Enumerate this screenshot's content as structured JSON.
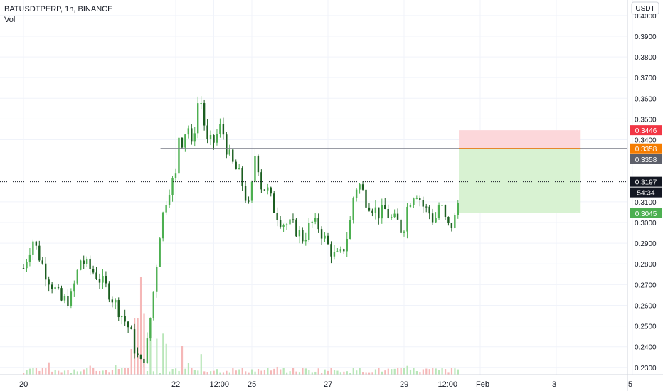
{
  "header": {
    "symbol_line": "BATUSDTPERP, 1h, BINANCE",
    "volume_label": "Vol"
  },
  "chart_data": {
    "type": "candlestick",
    "currency_label": "USDT",
    "ylim": [
      0.2265,
      0.4075
    ],
    "y_ticks": [
      {
        "value": 0.4,
        "label": "0.4000"
      },
      {
        "value": 0.39,
        "label": "0.3900"
      },
      {
        "value": 0.38,
        "label": "0.3800"
      },
      {
        "value": 0.37,
        "label": "0.3700"
      },
      {
        "value": 0.36,
        "label": "0.3600"
      },
      {
        "value": 0.35,
        "label": "0.3500"
      },
      {
        "value": 0.34,
        "label": "0.3400"
      },
      {
        "value": 0.31,
        "label": "0.3100"
      },
      {
        "value": 0.3,
        "label": "0.3000"
      },
      {
        "value": 0.29,
        "label": "0.2900"
      },
      {
        "value": 0.28,
        "label": "0.2800"
      },
      {
        "value": 0.27,
        "label": "0.2700"
      },
      {
        "value": 0.26,
        "label": "0.2600"
      },
      {
        "value": 0.25,
        "label": "0.2500"
      },
      {
        "value": 0.24,
        "label": "0.2400"
      },
      {
        "value": 0.23,
        "label": "0.2300"
      }
    ],
    "x_ticks": [
      {
        "day": 0,
        "label": "20"
      },
      {
        "day": 2,
        "label": "22"
      },
      {
        "day": 2.5,
        "label": "12:00"
      },
      {
        "day": 3,
        "label": "25"
      },
      {
        "day": 4,
        "label": "27"
      },
      {
        "day": 5,
        "label": "29"
      },
      {
        "day": 5.5,
        "label": "12:00"
      },
      {
        "day": 6,
        "label": "Feb"
      },
      {
        "day": 7,
        "label": "3"
      },
      {
        "day": 8,
        "label": "5"
      }
    ],
    "price_path": [
      [
        0.0,
        0.278
      ],
      [
        0.12,
        0.292
      ],
      [
        0.3,
        0.275
      ],
      [
        0.5,
        0.262
      ],
      [
        0.62,
        0.263
      ],
      [
        0.75,
        0.282
      ],
      [
        0.95,
        0.275
      ],
      [
        1.1,
        0.268
      ],
      [
        1.25,
        0.258
      ],
      [
        1.4,
        0.248
      ],
      [
        1.48,
        0.236
      ],
      [
        1.55,
        0.231
      ],
      [
        1.62,
        0.24
      ],
      [
        1.72,
        0.27
      ],
      [
        1.8,
        0.298
      ],
      [
        1.9,
        0.316
      ],
      [
        2.0,
        0.322
      ],
      [
        2.05,
        0.346
      ],
      [
        2.1,
        0.336
      ],
      [
        2.15,
        0.352
      ],
      [
        2.2,
        0.334
      ],
      [
        2.25,
        0.346
      ],
      [
        2.3,
        0.36
      ],
      [
        2.35,
        0.357
      ],
      [
        2.4,
        0.338
      ],
      [
        2.5,
        0.339
      ],
      [
        2.6,
        0.347
      ],
      [
        2.68,
        0.334
      ],
      [
        2.75,
        0.328
      ],
      [
        2.85,
        0.322
      ],
      [
        2.92,
        0.312
      ],
      [
        2.97,
        0.306
      ],
      [
        3.05,
        0.336
      ],
      [
        3.12,
        0.318
      ],
      [
        3.2,
        0.316
      ],
      [
        3.3,
        0.306
      ],
      [
        3.4,
        0.3
      ],
      [
        3.55,
        0.298
      ],
      [
        3.68,
        0.292
      ],
      [
        3.78,
        0.3
      ],
      [
        3.88,
        0.298
      ],
      [
        3.98,
        0.29
      ],
      [
        4.08,
        0.284
      ],
      [
        4.15,
        0.283
      ],
      [
        4.2,
        0.287
      ],
      [
        4.28,
        0.297
      ],
      [
        4.35,
        0.317
      ],
      [
        4.42,
        0.318
      ],
      [
        4.5,
        0.311
      ],
      [
        4.6,
        0.307
      ],
      [
        4.68,
        0.304
      ],
      [
        4.75,
        0.306
      ],
      [
        4.82,
        0.302
      ],
      [
        4.92,
        0.3
      ],
      [
        4.98,
        0.295
      ],
      [
        5.05,
        0.309
      ],
      [
        5.15,
        0.316
      ],
      [
        5.25,
        0.308
      ],
      [
        5.35,
        0.304
      ],
      [
        5.4,
        0.3
      ],
      [
        5.47,
        0.31
      ],
      [
        5.55,
        0.3
      ],
      [
        5.6,
        0.297
      ],
      [
        5.68,
        0.303
      ],
      [
        5.72,
        0.312
      ]
    ],
    "volume_max": 0.25,
    "volume_spikes": [
      {
        "day": 1.42,
        "volume": 0.25
      },
      {
        "day": 1.48,
        "volume": 0.55
      },
      {
        "day": 1.55,
        "volume": 0.95
      },
      {
        "day": 1.6,
        "volume": 0.6
      },
      {
        "day": 1.68,
        "volume": 0.5
      },
      {
        "day": 1.75,
        "volume": 0.35
      },
      {
        "day": 1.82,
        "volume": 0.4
      },
      {
        "day": 1.88,
        "volume": 0.3
      },
      {
        "day": 2.08,
        "volume": 0.28
      },
      {
        "day": 2.32,
        "volume": 0.2
      },
      {
        "day": 0.35,
        "volume": 0.12
      }
    ],
    "horizontal_line": {
      "price": 0.3358
    },
    "last_price_line": {
      "price": 0.3197
    },
    "position": {
      "type": "long",
      "start_day": 5.72,
      "end_day": 7.32,
      "entry": 0.3358,
      "stop_loss": 0.3045,
      "take_profit": 0.3446
    },
    "price_labels": [
      {
        "price": 0.3446,
        "text": "0.3446",
        "bg": "#f23645",
        "fg": "#ffffff"
      },
      {
        "price": 0.3358,
        "text": "0.3358",
        "bg": "#f57c00",
        "fg": "#ffffff"
      },
      {
        "price": 0.3358,
        "text": "0.3358",
        "bg": "#5d606b",
        "fg": "#ffffff",
        "offset": 1
      },
      {
        "price": 0.3197,
        "text": "0.3197",
        "bg": "#131722",
        "fg": "#ffffff"
      },
      {
        "price": 0.3197,
        "text": "54:34",
        "bg": "#131722",
        "fg": "#ffffff",
        "offset": 1
      },
      {
        "price": 0.3045,
        "text": "0.3045",
        "bg": "#4caf50",
        "fg": "#ffffff"
      }
    ],
    "colors": {
      "up": "#4caf50",
      "down": "#1b5e20",
      "volume_up": "#b8e6b8",
      "volume_down": "#f5b7b7",
      "grid": "#f0f3fa",
      "axis_text": "#131722",
      "profit_zone": "#d8f2d2",
      "loss_zone": "#fcd7da"
    }
  }
}
